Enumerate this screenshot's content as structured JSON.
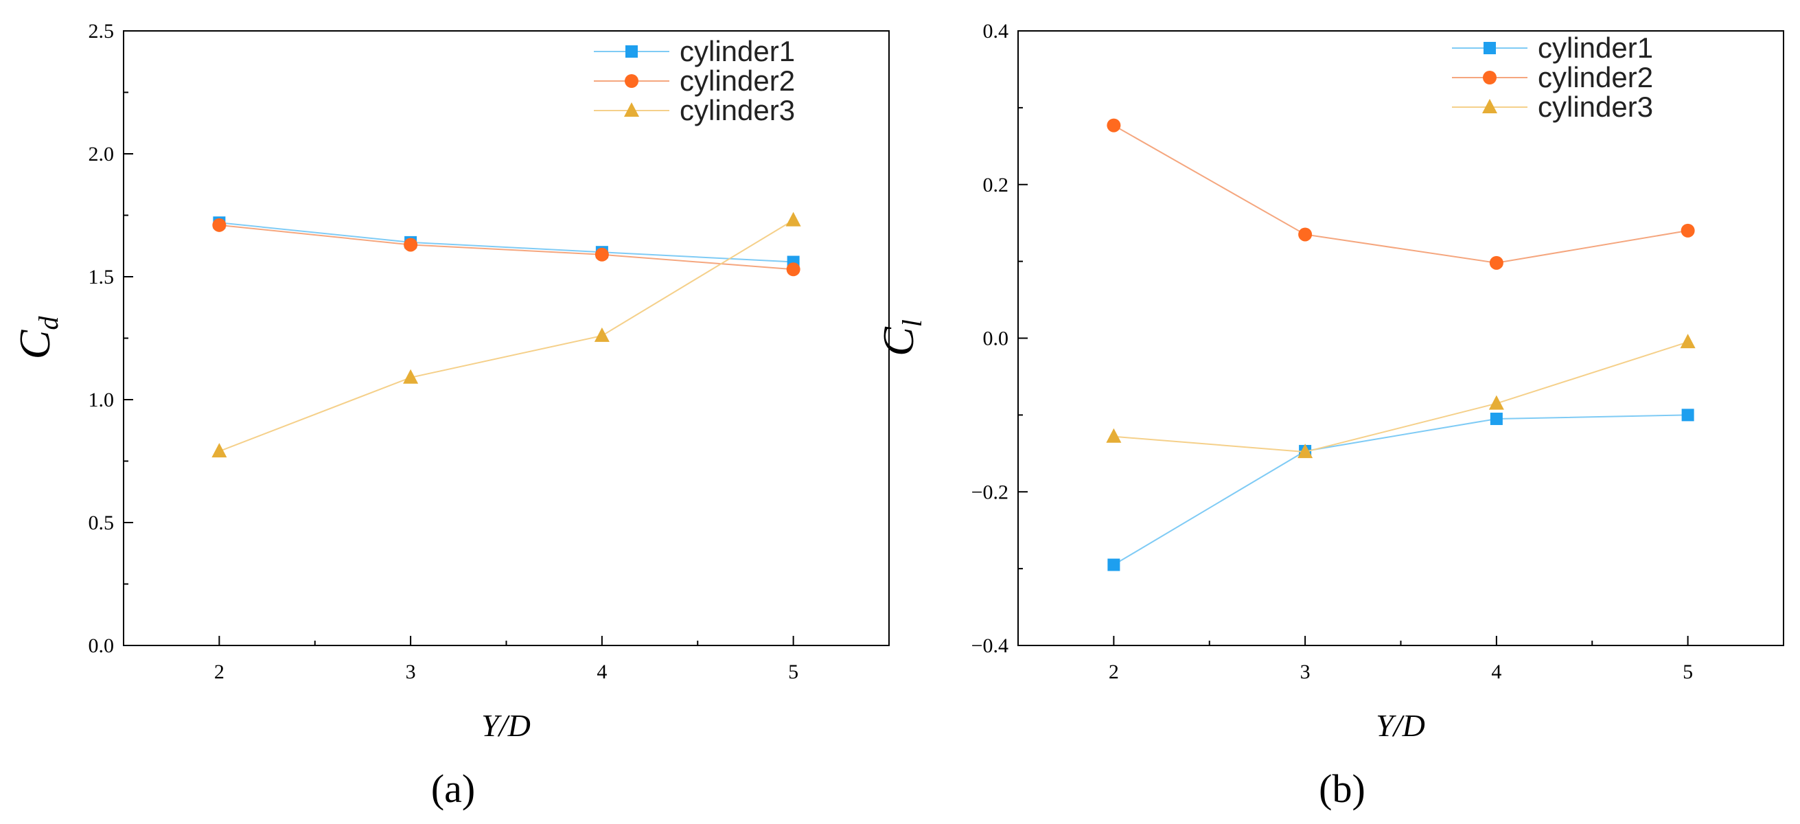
{
  "colors": {
    "cylinder1": "#1E9FEF",
    "cylinder2": "#FF6A1F",
    "cylinder3": "#E6AD35",
    "cylinder1_line": "#7FCBF5",
    "cylinder2_line": "#F5A67E",
    "cylinder3_line": "#F5D08A"
  },
  "chart_data": [
    {
      "type": "line",
      "panel_label": "(a)",
      "xlabel": "Y/D",
      "ylabel": "C",
      "ylabel_sub": "d",
      "x": [
        2,
        3,
        4,
        5
      ],
      "xlim": [
        1.5,
        5.5
      ],
      "ylim": [
        0.0,
        2.5
      ],
      "yticks": [
        0.0,
        0.5,
        1.0,
        1.5,
        2.0,
        2.5
      ],
      "ytick_labels": [
        "0.0",
        "0.5",
        "1.0",
        "1.5",
        "2.0",
        "2.5"
      ],
      "xtick_labels": [
        "2",
        "3",
        "4",
        "5"
      ],
      "legend_position": "top-right",
      "series": [
        {
          "name": "cylinder1",
          "marker": "square",
          "values": [
            1.72,
            1.64,
            1.6,
            1.56
          ]
        },
        {
          "name": "cylinder2",
          "marker": "circle",
          "values": [
            1.71,
            1.63,
            1.59,
            1.53
          ]
        },
        {
          "name": "cylinder3",
          "marker": "triangle",
          "values": [
            0.79,
            1.09,
            1.26,
            1.73
          ]
        }
      ]
    },
    {
      "type": "line",
      "panel_label": "(b)",
      "xlabel": "Y/D",
      "ylabel": "C",
      "ylabel_sub": "l",
      "x": [
        2,
        3,
        4,
        5
      ],
      "xlim": [
        1.5,
        5.5
      ],
      "ylim": [
        -0.4,
        0.4
      ],
      "yticks": [
        -0.4,
        -0.2,
        0.0,
        0.2,
        0.4
      ],
      "ytick_labels": [
        "−0.4",
        "−0.2",
        "0.0",
        "0.2",
        "0.4"
      ],
      "xtick_labels": [
        "2",
        "3",
        "4",
        "5"
      ],
      "legend_position": "top-right",
      "series": [
        {
          "name": "cylinder1",
          "marker": "square",
          "values": [
            -0.295,
            -0.147,
            -0.105,
            -0.1
          ]
        },
        {
          "name": "cylinder2",
          "marker": "circle",
          "values": [
            0.277,
            0.135,
            0.098,
            0.14
          ]
        },
        {
          "name": "cylinder3",
          "marker": "triangle",
          "values": [
            -0.128,
            -0.148,
            -0.085,
            -0.005
          ]
        }
      ]
    }
  ]
}
